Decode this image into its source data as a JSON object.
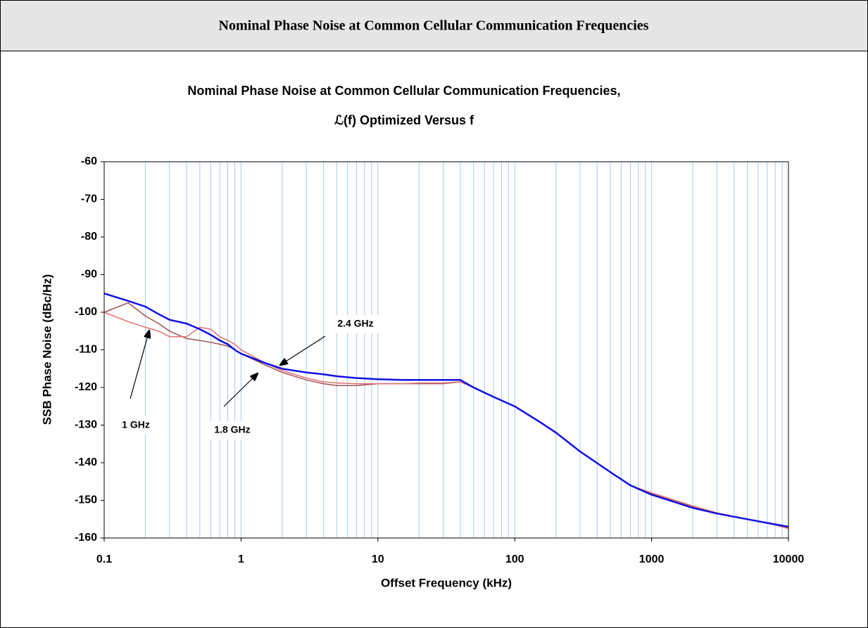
{
  "header": {
    "title": "Nominal Phase Noise at Common Cellular Communication Frequencies"
  },
  "chart_data": {
    "type": "line",
    "title": "Nominal Phase Noise at Common Cellular Communication Frequencies,",
    "subtitle": "ℒ(f) Optimized Versus f",
    "x_label": "Offset Frequency (kHz)",
    "y_label": "SSB Phase Noise (dBc/Hz)",
    "x_log": true,
    "xlim": [
      0.1,
      10000
    ],
    "ylim": [
      -160,
      -60
    ],
    "xticks": [
      0.1,
      1,
      10,
      100,
      1000,
      10000
    ],
    "yticks": [
      -160,
      -150,
      -140,
      -130,
      -120,
      -110,
      -100,
      -90,
      -80,
      -70,
      -60
    ],
    "x_grid": [
      0.2,
      0.3,
      0.4,
      0.5,
      0.6,
      0.7,
      0.8,
      0.9,
      1,
      2,
      3,
      4,
      5,
      6,
      7,
      8,
      9,
      10,
      20,
      30,
      40,
      50,
      60,
      70,
      80,
      90,
      100,
      200,
      300,
      400,
      500,
      600,
      700,
      800,
      900,
      1000,
      2000,
      3000,
      4000,
      5000,
      6000,
      7000,
      8000,
      9000
    ],
    "grid_color": "#a6caf0",
    "x": [
      0.1,
      0.15,
      0.2,
      0.25,
      0.3,
      0.4,
      0.5,
      0.6,
      0.7,
      0.8,
      0.9,
      1,
      1.5,
      2,
      3,
      4,
      5,
      7,
      10,
      15,
      20,
      30,
      40,
      50,
      70,
      100,
      150,
      200,
      300,
      500,
      700,
      1000,
      2000,
      3000,
      5000,
      7000,
      10000
    ],
    "series": [
      {
        "name": "2.4 GHz",
        "color": "#1010e0",
        "values": [
          -95,
          -97,
          -98.5,
          -100.5,
          -102,
          -103,
          -104.5,
          -106,
          -107.5,
          -108.5,
          -110,
          -111,
          -113.5,
          -115,
          -116,
          -116.5,
          -117,
          -117.5,
          -117.8,
          -118,
          -118,
          -118,
          -118,
          -120,
          -122.5,
          -125,
          -129,
          -132,
          -137,
          -142.5,
          -146,
          -148.5,
          -152,
          -153.5,
          -155,
          -156,
          -157
        ]
      },
      {
        "name": "1.8 GHz",
        "color": "#e07070",
        "values": [
          -100,
          -102.5,
          -104,
          -105,
          -106.5,
          -106.5,
          -104,
          -104.5,
          -106.5,
          -107.5,
          -108.5,
          -110,
          -113.5,
          -115.5,
          -117.5,
          -118.5,
          -118.8,
          -119,
          -119,
          -119,
          -118.8,
          -118.8,
          -118.5,
          -120,
          -122.5,
          -125,
          -129,
          -132,
          -137,
          -142.5,
          -146,
          -148,
          -151.5,
          -153.3,
          -155,
          -156,
          -157.5
        ]
      },
      {
        "name": "1 GHz",
        "color": "#a05050",
        "values": [
          -100,
          -97.5,
          -101,
          -103,
          -105,
          -107,
          -107.5,
          -108,
          -108.5,
          -109,
          -110,
          -111,
          -114,
          -116,
          -118,
          -119,
          -119.5,
          -119.5,
          -119,
          -119,
          -119,
          -119,
          -118.5,
          -120,
          -122.5,
          -125,
          -129,
          -132,
          -137,
          -142.5,
          -146,
          -148.3,
          -151.8,
          -153.4,
          -155,
          -156,
          -157.2
        ]
      }
    ]
  }
}
